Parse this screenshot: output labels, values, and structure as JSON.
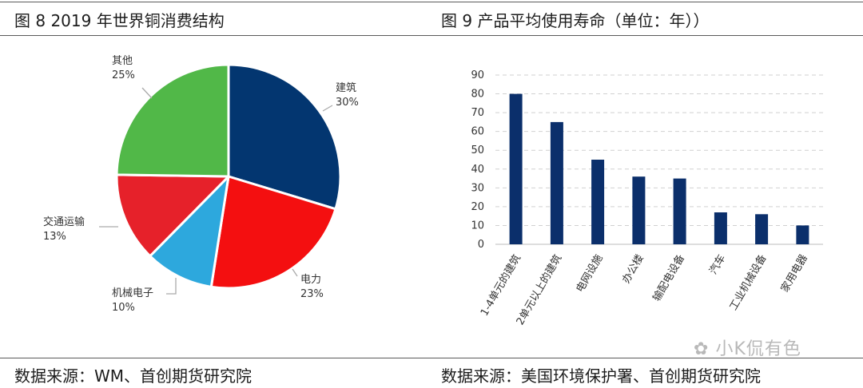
{
  "left": {
    "heading": "图 8 2019 年世界铜消费结构",
    "source": "数据来源：WM、首创期货研究院"
  },
  "right": {
    "heading": "图  9  产品平均使用寿命（单位：年））",
    "source": "数据来源：美国环境保护署、首创期货研究院"
  },
  "watermark": "小K侃有色",
  "chart_data": [
    {
      "type": "pie",
      "slices": [
        {
          "label": "建筑",
          "value": 30,
          "pct": "30%",
          "color": "#033670"
        },
        {
          "label": "电力",
          "value": 23,
          "pct": "23%",
          "color": "#f40f10"
        },
        {
          "label": "机械电子",
          "value": 10,
          "pct": "10%",
          "color": "#2da8dd"
        },
        {
          "label": "交通运输",
          "value": 13,
          "pct": "13%",
          "color": "#e6212a"
        },
        {
          "label": "其他",
          "value": 25,
          "pct": "25%",
          "color": "#51b848"
        }
      ]
    },
    {
      "type": "bar",
      "categories": [
        "1-4单元的建筑",
        "2单元以上的建筑",
        "电网设施",
        "办公楼",
        "输配电设备",
        "汽车",
        "工业机械设备",
        "家用电器"
      ],
      "values": [
        80,
        65,
        45,
        36,
        35,
        17,
        16,
        10
      ],
      "ylim": [
        0,
        90
      ],
      "yticks": [
        0,
        10,
        20,
        30,
        40,
        50,
        60,
        70,
        80,
        90
      ],
      "grid": true,
      "color": "#0b2f6b"
    }
  ]
}
